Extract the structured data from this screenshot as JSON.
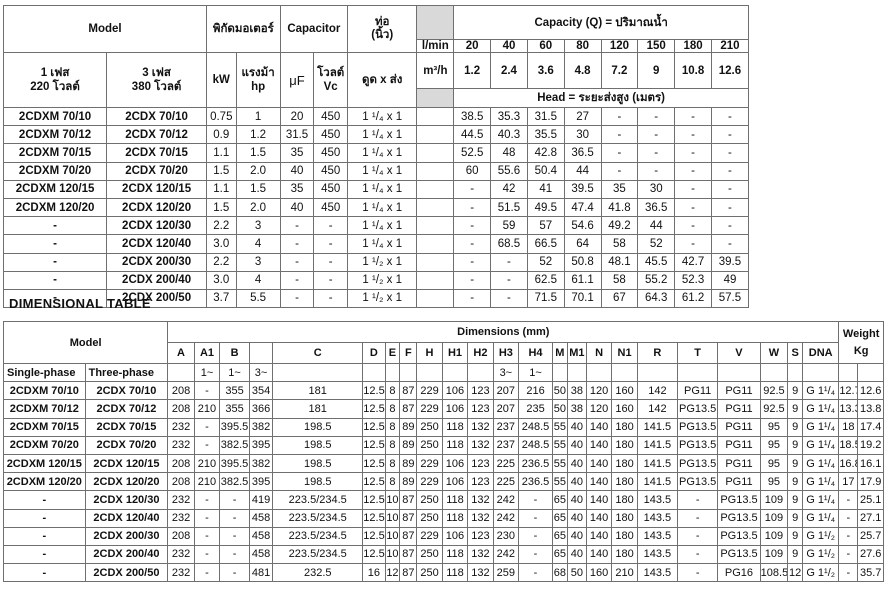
{
  "performance_table": {
    "headers": {
      "model": "Model",
      "motor_rating": "พิกัดมอเตอร์",
      "capacitor": "Capacitor",
      "pipe": "ท่อ",
      "pipe_unit": "(นิ้ว)",
      "capacity": "Capacity (Q) = ปริมาณน้ำ",
      "lmin": "l/min",
      "m3h": "m³/h",
      "head": "Head = ระยะส่งสูง (เมตร)",
      "single_phase": "1 เฟส",
      "single_voltage": "220 โวลต์",
      "three_phase": "3 เฟส",
      "three_voltage": "380 โวลต์",
      "kw": "kW",
      "hp_label": "แรงม้า",
      "hp": "hp",
      "uf": "μF",
      "volt": "โวลต์",
      "vc": "Vc",
      "suction_discharge": "ดูด x ส่ง",
      "flow_lmin": [
        "20",
        "40",
        "60",
        "80",
        "120",
        "150",
        "180",
        "210"
      ],
      "flow_m3h": [
        "1.2",
        "2.4",
        "3.6",
        "4.8",
        "7.2",
        "9",
        "10.8",
        "12.6"
      ]
    },
    "rows": [
      {
        "single": "2CDXM 70/10",
        "three": "2CDX 70/10",
        "kw": "0.75",
        "hp": "1",
        "uf": "20",
        "vc": "450",
        "pipe": "1 ¹/₄ x 1",
        "empty": "",
        "heads": [
          "38.5",
          "35.3",
          "31.5",
          "27",
          "-",
          "-",
          "-",
          "-"
        ]
      },
      {
        "single": "2CDXM 70/12",
        "three": "2CDX 70/12",
        "kw": "0.9",
        "hp": "1.2",
        "uf": "31.5",
        "vc": "450",
        "pipe": "1 ¹/₄ x 1",
        "empty": "",
        "heads": [
          "44.5",
          "40.3",
          "35.5",
          "30",
          "-",
          "-",
          "-",
          "-"
        ]
      },
      {
        "single": "2CDXM 70/15",
        "three": "2CDX 70/15",
        "kw": "1.1",
        "hp": "1.5",
        "uf": "35",
        "vc": "450",
        "pipe": "1 ¹/₄ x 1",
        "empty": "",
        "heads": [
          "52.5",
          "48",
          "42.8",
          "36.5",
          "-",
          "-",
          "-",
          "-"
        ]
      },
      {
        "single": "2CDXM 70/20",
        "three": "2CDX 70/20",
        "kw": "1.5",
        "hp": "2.0",
        "uf": "40",
        "vc": "450",
        "pipe": "1 ¹/₄ x 1",
        "empty": "",
        "heads": [
          "60",
          "55.6",
          "50.4",
          "44",
          "-",
          "-",
          "-",
          "-"
        ]
      },
      {
        "single": "2CDXM 120/15",
        "three": "2CDX 120/15",
        "kw": "1.1",
        "hp": "1.5",
        "uf": "35",
        "vc": "450",
        "pipe": "1 ¹/₄ x 1",
        "empty": "",
        "heads": [
          "-",
          "42",
          "41",
          "39.5",
          "35",
          "30",
          "-",
          "-"
        ]
      },
      {
        "single": "2CDXM 120/20",
        "three": "2CDX 120/20",
        "kw": "1.5",
        "hp": "2.0",
        "uf": "40",
        "vc": "450",
        "pipe": "1 ¹/₄ x 1",
        "empty": "",
        "heads": [
          "-",
          "51.5",
          "49.5",
          "47.4",
          "41.8",
          "36.5",
          "-",
          "-"
        ]
      },
      {
        "single": "-",
        "three": "2CDX 120/30",
        "kw": "2.2",
        "hp": "3",
        "uf": "-",
        "vc": "-",
        "pipe": "1 ¹/₄ x 1",
        "empty": "",
        "heads": [
          "-",
          "59",
          "57",
          "54.6",
          "49.2",
          "44",
          "-",
          "-"
        ]
      },
      {
        "single": "-",
        "three": "2CDX 120/40",
        "kw": "3.0",
        "hp": "4",
        "uf": "-",
        "vc": "-",
        "pipe": "1 ¹/₄ x 1",
        "empty": "",
        "heads": [
          "-",
          "68.5",
          "66.5",
          "64",
          "58",
          "52",
          "-",
          "-"
        ]
      },
      {
        "single": "-",
        "three": "2CDX 200/30",
        "kw": "2.2",
        "hp": "3",
        "uf": "-",
        "vc": "-",
        "pipe": "1 ¹/₂ x 1",
        "empty": "",
        "heads": [
          "-",
          "-",
          "52",
          "50.8",
          "48.1",
          "45.5",
          "42.7",
          "39.5"
        ]
      },
      {
        "single": "-",
        "three": "2CDX 200/40",
        "kw": "3.0",
        "hp": "4",
        "uf": "-",
        "vc": "-",
        "pipe": "1 ¹/₂ x 1",
        "empty": "",
        "heads": [
          "-",
          "-",
          "62.5",
          "61.1",
          "58",
          "55.2",
          "52.3",
          "49"
        ]
      },
      {
        "single": "-",
        "three": "2CDX 200/50",
        "kw": "3.7",
        "hp": "5.5",
        "uf": "-",
        "vc": "-",
        "pipe": "1 ¹/₂ x 1",
        "empty": "",
        "heads": [
          "-",
          "-",
          "71.5",
          "70.1",
          "67",
          "64.3",
          "61.2",
          "57.5"
        ]
      }
    ]
  },
  "dimensional_table": {
    "title": "DIMENSIONAL TABLE",
    "headers": {
      "model": "Model",
      "dimensions": "Dimensions (mm)",
      "weight": "Weight",
      "kg": "Kg",
      "columns": [
        "A",
        "A1",
        "B",
        "",
        "C",
        "D",
        "E",
        "F",
        "H",
        "H1",
        "H2",
        "H3",
        "H4",
        "M",
        "M1",
        "N",
        "N1",
        "R",
        "T",
        "V",
        "W",
        "S",
        "DNA",
        "",
        ""
      ],
      "single_phase": "Single-phase",
      "three_phase": "Three-phase",
      "sub": [
        "",
        "1~",
        "1~",
        "3~",
        "",
        "",
        "",
        "",
        "",
        "",
        "",
        "3~",
        "1~",
        "",
        "",
        "",
        "",
        "",
        "",
        "",
        "",
        "",
        "",
        "",
        ""
      ]
    },
    "rows": [
      {
        "single": "2CDXM 70/10",
        "three": "2CDX 70/10",
        "cells": [
          "208",
          "-",
          "355",
          "354",
          "181",
          "12.5",
          "8",
          "87",
          "229",
          "106",
          "123",
          "207",
          "216",
          "50",
          "38",
          "120",
          "160",
          "142",
          "PG11",
          "PG11",
          "92.5",
          "9",
          "G 1¹/₄",
          "12.7",
          "12.6"
        ]
      },
      {
        "single": "2CDXM 70/12",
        "three": "2CDX 70/12",
        "cells": [
          "208",
          "210",
          "355",
          "366",
          "181",
          "12.5",
          "8",
          "87",
          "229",
          "106",
          "123",
          "207",
          "235",
          "50",
          "38",
          "120",
          "160",
          "142",
          "PG13.5",
          "PG11",
          "92.5",
          "9",
          "G 1¹/₄",
          "13.3",
          "13.8"
        ]
      },
      {
        "single": "2CDXM 70/15",
        "three": "2CDX 70/15",
        "cells": [
          "232",
          "-",
          "395.5",
          "382",
          "198.5",
          "12.5",
          "8",
          "89",
          "250",
          "118",
          "132",
          "237",
          "248.5",
          "55",
          "40",
          "140",
          "180",
          "141.5",
          "PG13.5",
          "PG11",
          "95",
          "9",
          "G 1¹/₄",
          "18",
          "17.4"
        ]
      },
      {
        "single": "2CDXM 70/20",
        "three": "2CDX 70/20",
        "cells": [
          "232",
          "-",
          "382.5",
          "395",
          "198.5",
          "12.5",
          "8",
          "89",
          "250",
          "118",
          "132",
          "237",
          "248.5",
          "55",
          "40",
          "140",
          "180",
          "141.5",
          "PG13.5",
          "PG11",
          "95",
          "9",
          "G 1¹/₄",
          "18.5",
          "19.2"
        ]
      },
      {
        "single": "2CDXM 120/15",
        "three": "2CDX 120/15",
        "cells": [
          "208",
          "210",
          "395.5",
          "382",
          "198.5",
          "12.5",
          "8",
          "89",
          "229",
          "106",
          "123",
          "225",
          "236.5",
          "55",
          "40",
          "140",
          "180",
          "141.5",
          "PG13.5",
          "PG11",
          "95",
          "9",
          "G 1¹/₄",
          "16.8",
          "16.1"
        ]
      },
      {
        "single": "2CDXM 120/20",
        "three": "2CDX 120/20",
        "cells": [
          "208",
          "210",
          "382.5",
          "395",
          "198.5",
          "12.5",
          "8",
          "89",
          "229",
          "106",
          "123",
          "225",
          "236.5",
          "55",
          "40",
          "140",
          "180",
          "141.5",
          "PG13.5",
          "PG11",
          "95",
          "9",
          "G 1¹/₄",
          "17",
          "17.9"
        ]
      },
      {
        "single": "-",
        "three": "2CDX 120/30",
        "cells": [
          "232",
          "-",
          "-",
          "419",
          "223.5/234.5",
          "12.5",
          "10",
          "87",
          "250",
          "118",
          "132",
          "242",
          "-",
          "65",
          "40",
          "140",
          "180",
          "143.5",
          "-",
          "PG13.5",
          "109",
          "9",
          "G 1¹/₄",
          "-",
          "25.1"
        ]
      },
      {
        "single": "-",
        "three": "2CDX 120/40",
        "cells": [
          "232",
          "-",
          "-",
          "458",
          "223.5/234.5",
          "12.5",
          "10",
          "87",
          "250",
          "118",
          "132",
          "242",
          "-",
          "65",
          "40",
          "140",
          "180",
          "143.5",
          "-",
          "PG13.5",
          "109",
          "9",
          "G 1¹/₄",
          "-",
          "27.1"
        ]
      },
      {
        "single": "-",
        "three": "2CDX 200/30",
        "cells": [
          "208",
          "-",
          "-",
          "458",
          "223.5/234.5",
          "12.5",
          "10",
          "87",
          "229",
          "106",
          "123",
          "230",
          "-",
          "65",
          "40",
          "140",
          "180",
          "143.5",
          "-",
          "PG13.5",
          "109",
          "9",
          "G 1¹/₂",
          "-",
          "25.7"
        ]
      },
      {
        "single": "-",
        "three": "2CDX 200/40",
        "cells": [
          "232",
          "-",
          "-",
          "458",
          "223.5/234.5",
          "12.5",
          "10",
          "87",
          "250",
          "118",
          "132",
          "242",
          "-",
          "65",
          "40",
          "140",
          "180",
          "143.5",
          "-",
          "PG13.5",
          "109",
          "9",
          "G 1¹/₂",
          "-",
          "27.6"
        ]
      },
      {
        "single": "-",
        "three": "2CDX 200/50",
        "cells": [
          "232",
          "-",
          "-",
          "481",
          "232.5",
          "16",
          "12",
          "87",
          "250",
          "118",
          "132",
          "259",
          "-",
          "68",
          "50",
          "160",
          "210",
          "143.5",
          "-",
          "PG16",
          "108.5",
          "12",
          "G 1¹/₂",
          "-",
          "35.7"
        ]
      }
    ]
  }
}
